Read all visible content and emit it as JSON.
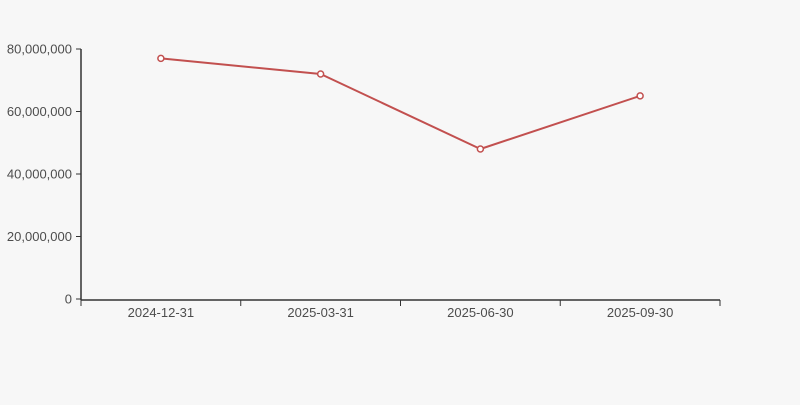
{
  "page": {
    "background_color": "#f7f7f7"
  },
  "chart_data": {
    "type": "line",
    "title": "",
    "xlabel": "",
    "ylabel": "",
    "categories": [
      "2024-12-31",
      "2025-03-31",
      "2025-06-30",
      "2025-09-30"
    ],
    "series": [
      {
        "name": "series-1",
        "values": [
          77000000,
          72000000,
          48000000,
          65000000
        ],
        "color": "#c2504f",
        "line_width": 2,
        "marker": "hollow-circle",
        "marker_fill": "#ffffff",
        "marker_radius": 3
      }
    ],
    "ylim": [
      0,
      80000000
    ],
    "yticks": [
      0,
      20000000,
      40000000,
      60000000,
      80000000
    ],
    "ytick_labels": [
      "0",
      "20,000,000",
      "40,000,000",
      "60,000,000",
      "80,000,000"
    ],
    "grid": false,
    "legend": "none",
    "x_tick_style": "category-boundary",
    "axis_color": "#333333",
    "tick_label_color": "#4d4d4d"
  }
}
